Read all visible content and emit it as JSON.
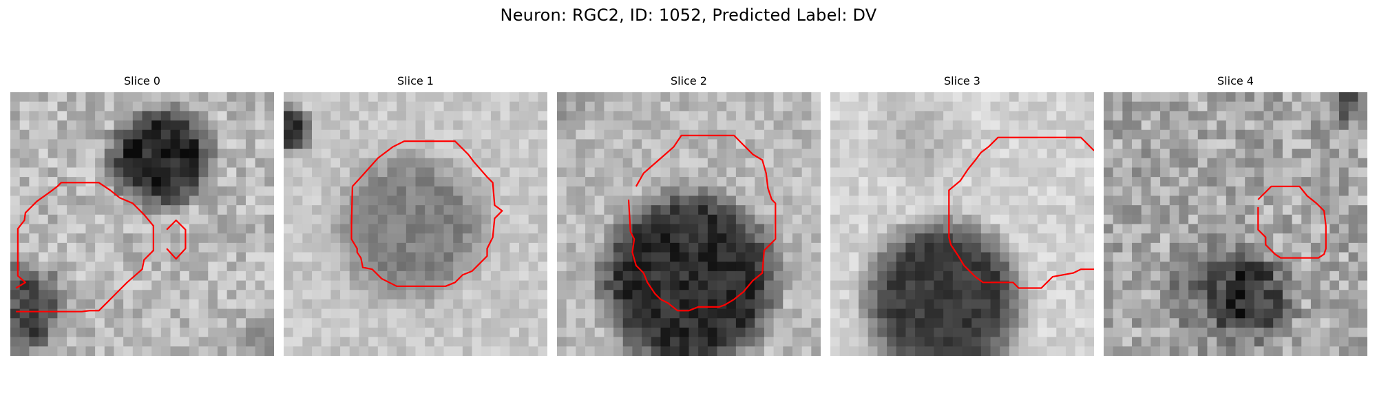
{
  "figure": {
    "title": "Neuron: RGC2, ID: 1052, Predicted Label: DV"
  },
  "panels": [
    {
      "label": "Slice 0"
    },
    {
      "label": "Slice 1"
    },
    {
      "label": "Slice 2"
    },
    {
      "label": "Slice 3"
    },
    {
      "label": "Slice 4"
    }
  ],
  "colors": {
    "contour": "#ff0000"
  }
}
